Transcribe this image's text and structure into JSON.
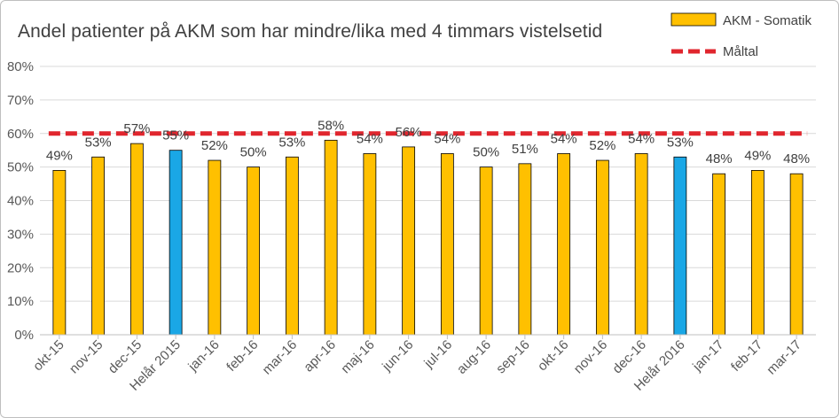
{
  "chart_data": {
    "type": "bar",
    "title": "Andel patienter på AKM som har mindre/lika med 4 timmars vistelsetid",
    "categories": [
      "okt-15",
      "nov-15",
      "dec-15",
      "Helår 2015",
      "jan-16",
      "feb-16",
      "mar-16",
      "apr-16",
      "maj-16",
      "jun-16",
      "jul-16",
      "aug-16",
      "sep-16",
      "okt-16",
      "nov-16",
      "dec-16",
      "Helår 2016",
      "jan-17",
      "feb-17",
      "mar-17"
    ],
    "series": [
      {
        "name": "AKM - Somatik",
        "values": [
          49,
          53,
          57,
          55,
          52,
          50,
          53,
          58,
          54,
          56,
          54,
          50,
          51,
          54,
          52,
          54,
          53,
          48,
          49,
          48
        ],
        "labels": [
          "49%",
          "53%",
          "57%",
          "55%",
          "52%",
          "50%",
          "53%",
          "58%",
          "54%",
          "56%",
          "54%",
          "50%",
          "51%",
          "54%",
          "52%",
          "54%",
          "53%",
          "48%",
          "49%",
          "48%"
        ],
        "color": "#FFC000",
        "highlight_color": "#1AA7E6",
        "highlight_categories": [
          "Helår 2015",
          "Helår 2016"
        ]
      },
      {
        "name": "Måltal",
        "type": "line",
        "value": 60,
        "color": "#E0262E",
        "style": "dashed"
      }
    ],
    "ylim": [
      0,
      80
    ],
    "yticks": [
      "0%",
      "10%",
      "20%",
      "30%",
      "40%",
      "50%",
      "60%",
      "70%",
      "80%"
    ],
    "ytick_values": [
      0,
      10,
      20,
      30,
      40,
      50,
      60,
      70,
      80
    ],
    "grid": true,
    "legend": "top-right"
  }
}
